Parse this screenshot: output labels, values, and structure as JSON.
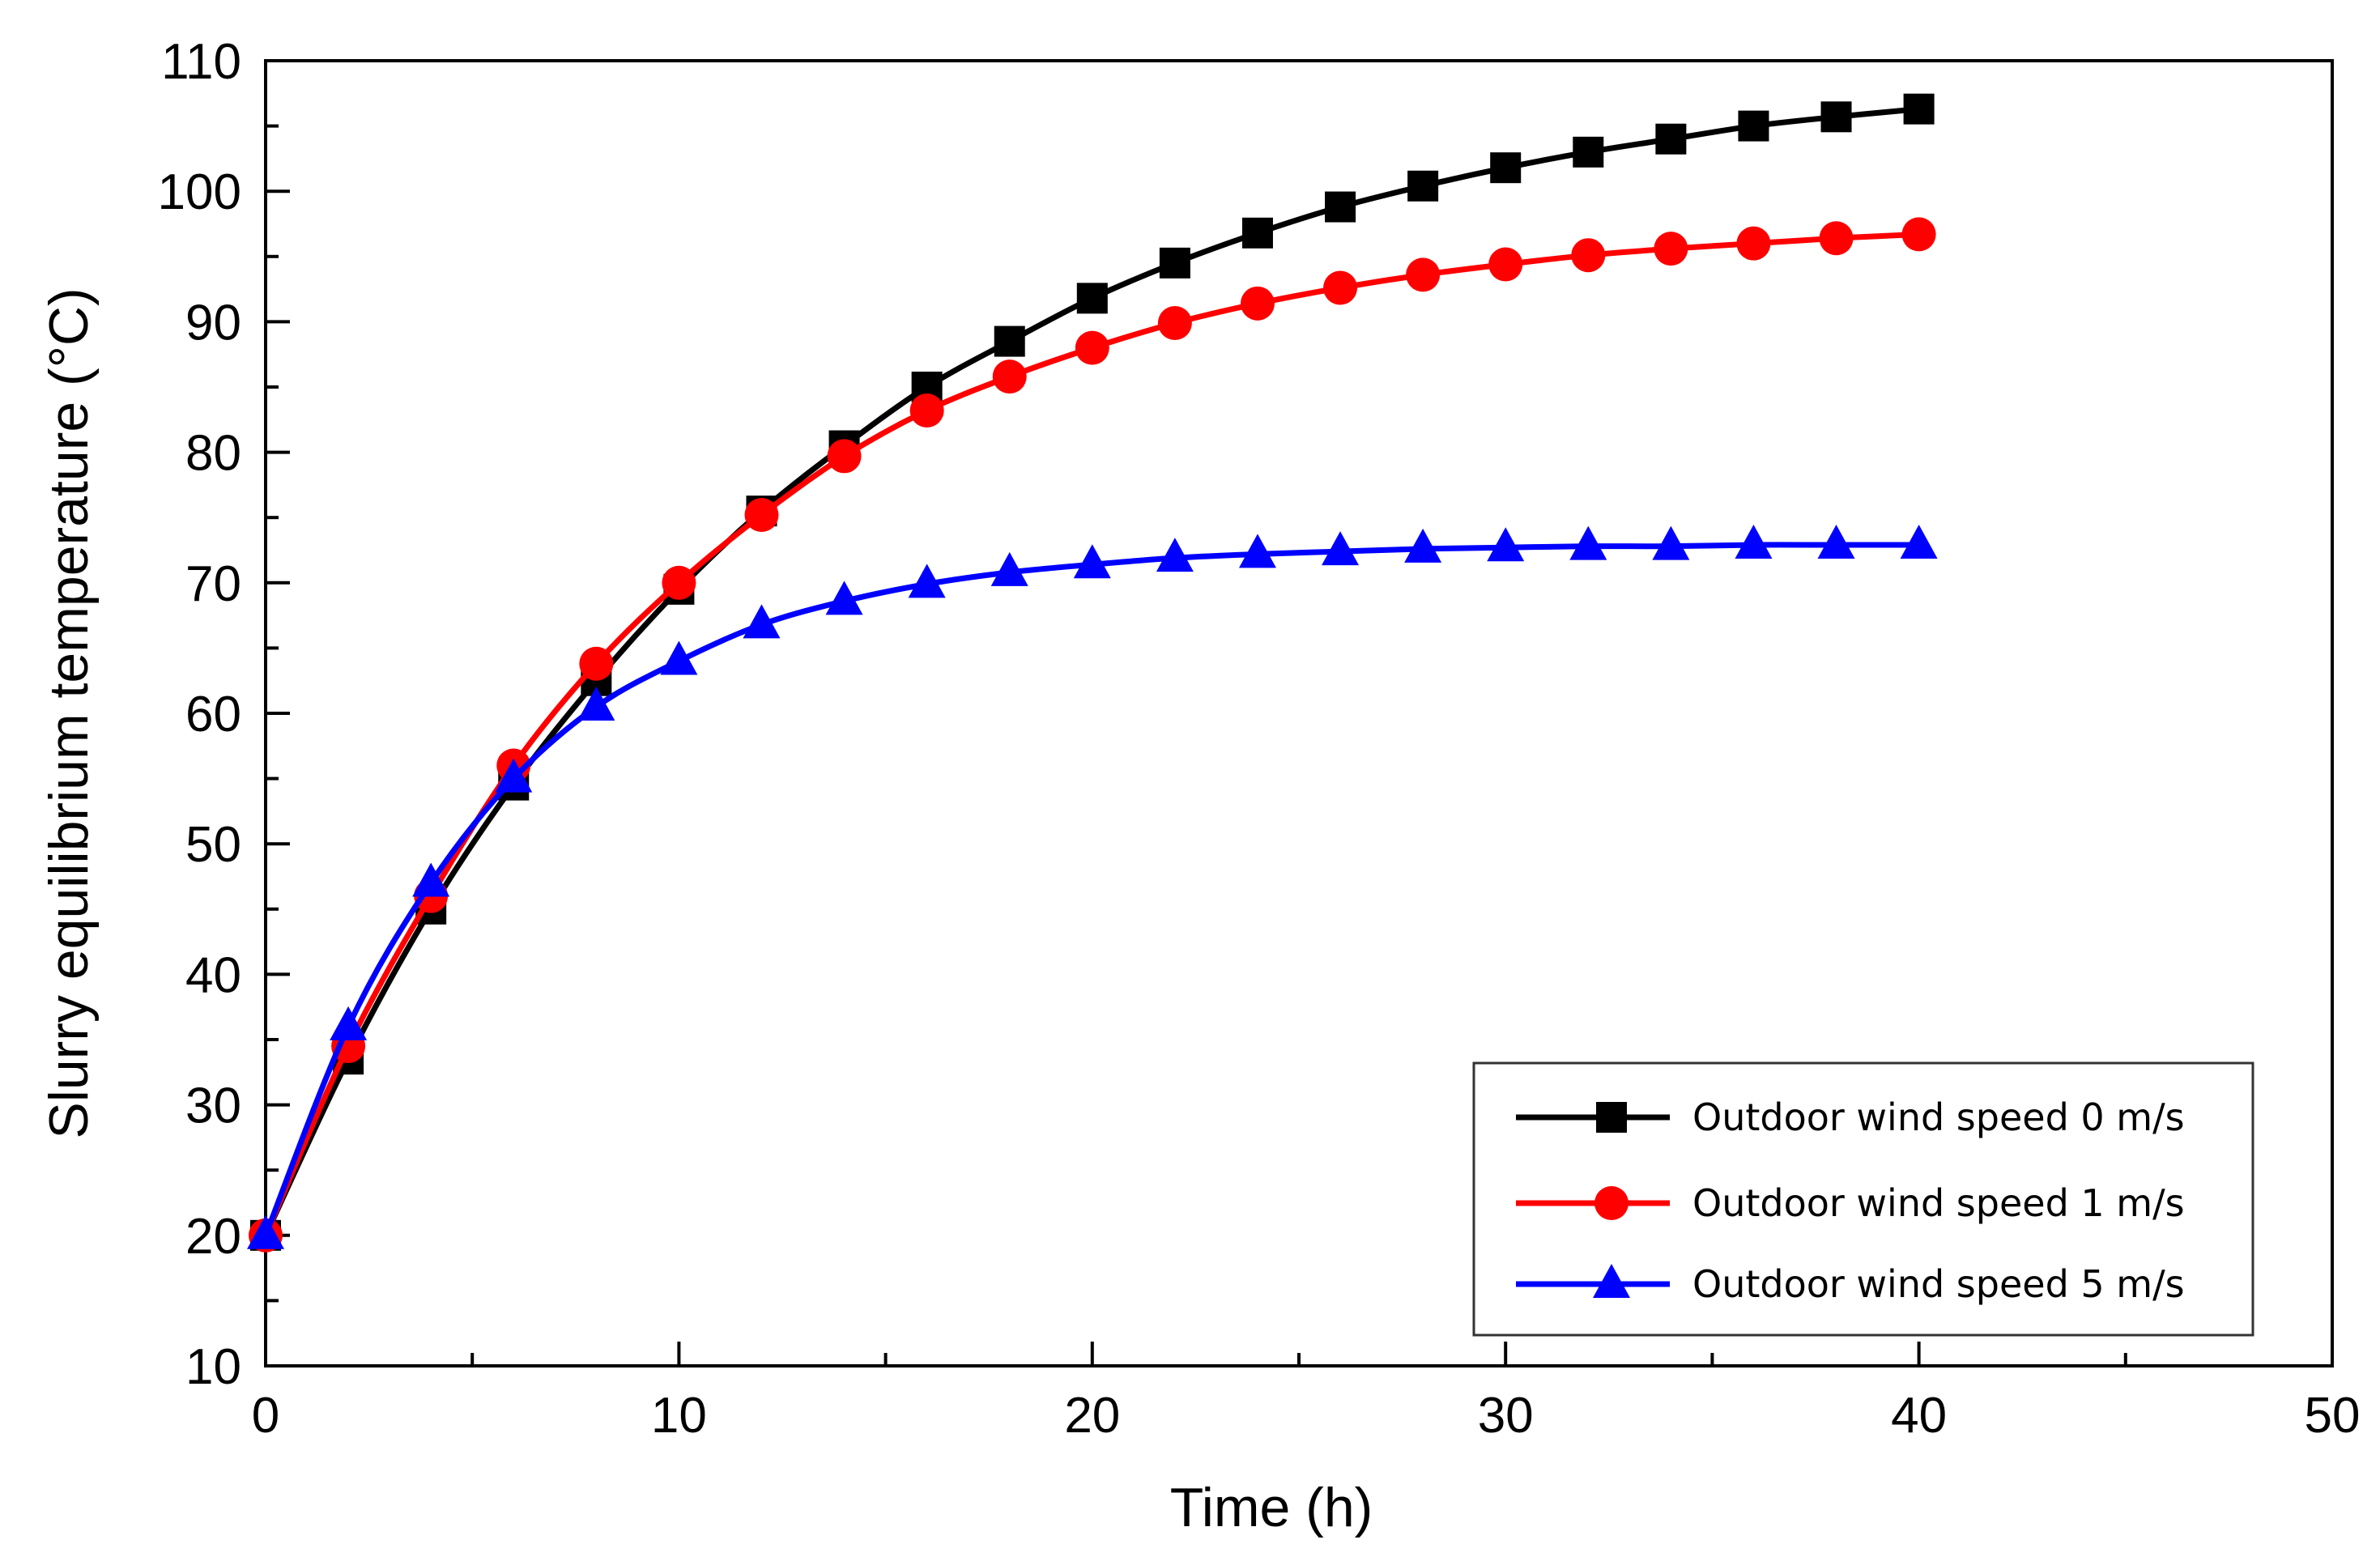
{
  "chart_data": {
    "type": "line",
    "title": "",
    "xlabel": "Time (h)",
    "ylabel": "Slurry equilibrium temperature (°C)",
    "xlim": [
      0,
      50
    ],
    "ylim": [
      10,
      110
    ],
    "xticks": [
      0,
      10,
      20,
      30,
      40,
      50
    ],
    "yticks": [
      10,
      20,
      30,
      40,
      50,
      60,
      70,
      80,
      90,
      100,
      110
    ],
    "grid": false,
    "legend_position": "bottom-right",
    "x": [
      0,
      2,
      4,
      6,
      8,
      10,
      12,
      14,
      16,
      18,
      20,
      22,
      24,
      26,
      28,
      30,
      32,
      34,
      36,
      38,
      40
    ],
    "series": [
      {
        "name": "Outdoor wind speed 0 m/s",
        "color": "#000000",
        "marker": "square",
        "values": [
          20,
          33.5,
          45,
          54.5,
          62.5,
          69.5,
          75.5,
          80.5,
          85,
          88.5,
          91.8,
          94.5,
          96.8,
          98.8,
          100.4,
          101.8,
          103,
          104,
          105,
          105.7,
          106.3
        ]
      },
      {
        "name": "Outdoor wind speed 1 m/s",
        "color": "#ff0000",
        "marker": "circle",
        "values": [
          20,
          34.5,
          46,
          56,
          63.8,
          70,
          75.2,
          79.7,
          83.2,
          85.8,
          88,
          89.9,
          91.4,
          92.6,
          93.6,
          94.4,
          95.1,
          95.6,
          96,
          96.4,
          96.7
        ]
      },
      {
        "name": "Outdoor wind speed 5 m/s",
        "color": "#0000ff",
        "marker": "triangle",
        "values": [
          20,
          36,
          47,
          55,
          60.5,
          64,
          66.8,
          68.6,
          69.9,
          70.8,
          71.4,
          71.9,
          72.2,
          72.4,
          72.6,
          72.7,
          72.8,
          72.8,
          72.9,
          72.9,
          72.9
        ]
      }
    ]
  }
}
